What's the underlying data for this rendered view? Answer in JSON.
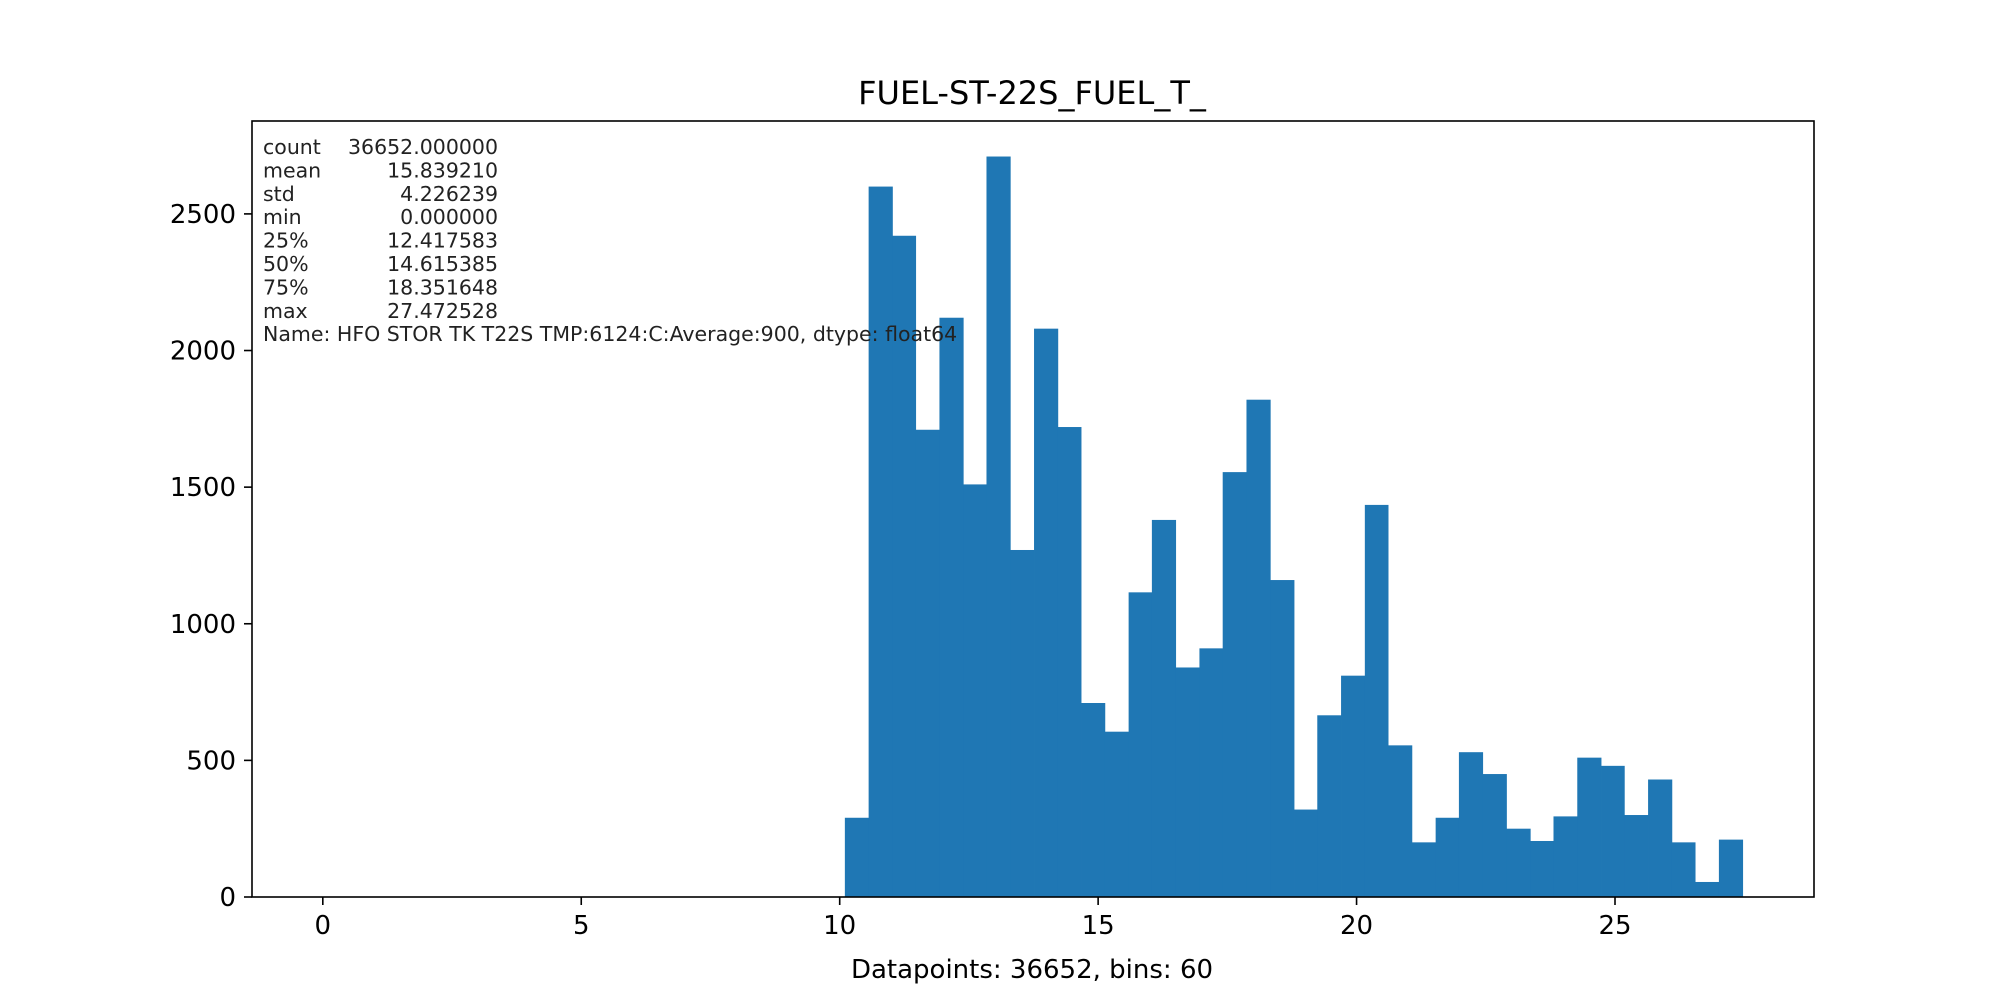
{
  "chart_data": {
    "type": "bar",
    "title": "FUEL-ST-22S_FUEL_T_",
    "xlabel": "Datapoints: 36652, bins: 60",
    "ylabel": "",
    "xlim": [
      -1.37,
      28.85
    ],
    "ylim": [
      0,
      2840
    ],
    "x_ticks": [
      0,
      5,
      10,
      15,
      20,
      25
    ],
    "y_ticks": [
      0,
      500,
      1000,
      1500,
      2000,
      2500
    ],
    "bar_color": "#1f77b4",
    "grid": false,
    "bins": [
      {
        "x0": 10.1,
        "x1": 10.56,
        "count": 290
      },
      {
        "x0": 10.56,
        "x1": 11.02,
        "count": 2600
      },
      {
        "x0": 11.02,
        "x1": 11.47,
        "count": 2420
      },
      {
        "x0": 11.47,
        "x1": 11.93,
        "count": 1710
      },
      {
        "x0": 11.93,
        "x1": 12.39,
        "count": 2120
      },
      {
        "x0": 12.39,
        "x1": 12.84,
        "count": 1510
      },
      {
        "x0": 12.84,
        "x1": 13.3,
        "count": 2710
      },
      {
        "x0": 13.3,
        "x1": 13.76,
        "count": 1270
      },
      {
        "x0": 13.76,
        "x1": 14.22,
        "count": 2080
      },
      {
        "x0": 14.22,
        "x1": 14.67,
        "count": 1720
      },
      {
        "x0": 14.67,
        "x1": 15.13,
        "count": 710
      },
      {
        "x0": 15.13,
        "x1": 15.59,
        "count": 605
      },
      {
        "x0": 15.59,
        "x1": 16.04,
        "count": 1115
      },
      {
        "x0": 16.04,
        "x1": 16.5,
        "count": 1380
      },
      {
        "x0": 16.5,
        "x1": 16.96,
        "count": 840
      },
      {
        "x0": 16.96,
        "x1": 17.41,
        "count": 910
      },
      {
        "x0": 17.41,
        "x1": 17.87,
        "count": 1555
      },
      {
        "x0": 17.87,
        "x1": 18.33,
        "count": 1820
      },
      {
        "x0": 18.33,
        "x1": 18.79,
        "count": 1160
      },
      {
        "x0": 18.79,
        "x1": 19.24,
        "count": 320
      },
      {
        "x0": 19.24,
        "x1": 19.7,
        "count": 665
      },
      {
        "x0": 19.7,
        "x1": 20.16,
        "count": 810
      },
      {
        "x0": 20.16,
        "x1": 20.61,
        "count": 1435
      },
      {
        "x0": 20.61,
        "x1": 21.07,
        "count": 555
      },
      {
        "x0": 21.07,
        "x1": 21.53,
        "count": 200
      },
      {
        "x0": 21.53,
        "x1": 21.98,
        "count": 290
      },
      {
        "x0": 21.98,
        "x1": 22.44,
        "count": 530
      },
      {
        "x0": 22.44,
        "x1": 22.9,
        "count": 450
      },
      {
        "x0": 22.9,
        "x1": 23.36,
        "count": 250
      },
      {
        "x0": 23.36,
        "x1": 23.81,
        "count": 205
      },
      {
        "x0": 23.81,
        "x1": 24.27,
        "count": 295
      },
      {
        "x0": 24.27,
        "x1": 24.73,
        "count": 510
      },
      {
        "x0": 24.73,
        "x1": 25.18,
        "count": 480
      },
      {
        "x0": 25.18,
        "x1": 25.64,
        "count": 300
      },
      {
        "x0": 25.64,
        "x1": 26.1,
        "count": 430
      },
      {
        "x0": 26.1,
        "x1": 26.55,
        "count": 200
      },
      {
        "x0": 26.55,
        "x1": 27.01,
        "count": 55
      },
      {
        "x0": 27.01,
        "x1": 27.47,
        "count": 210
      }
    ],
    "stats_lines": [
      "count    36652.000000",
      "mean        15.839210",
      "std          4.226239",
      "min          0.000000",
      "25%         12.417583",
      "50%         14.615385",
      "75%         18.351648",
      "max         27.472528",
      "Name: HFO STOR TK T22S TMP:6124:C:Average:900, dtype: float64"
    ]
  }
}
